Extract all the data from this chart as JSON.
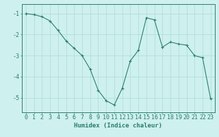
{
  "x": [
    0,
    1,
    2,
    3,
    4,
    5,
    6,
    7,
    8,
    9,
    10,
    11,
    12,
    13,
    14,
    15,
    16,
    17,
    18,
    19,
    20,
    21,
    22,
    23
  ],
  "y": [
    -1.0,
    -1.05,
    -1.15,
    -1.35,
    -1.8,
    -2.3,
    -2.65,
    -3.0,
    -3.65,
    -4.65,
    -5.15,
    -5.35,
    -4.55,
    -3.25,
    -2.75,
    -1.2,
    -1.3,
    -2.6,
    -2.35,
    -2.45,
    -2.5,
    -3.0,
    -3.1,
    -5.05
  ],
  "line_color": "#2a7d6d",
  "marker": "+",
  "marker_color": "#2a7d6d",
  "bg_color": "#cef0ee",
  "grid_color": "#aadbd8",
  "axis_color": "#2a7d6d",
  "spine_color": "#2a7d6d",
  "xlabel": "Humidex (Indice chaleur)",
  "xlim": [
    -0.5,
    23.5
  ],
  "ylim": [
    -5.7,
    -0.55
  ],
  "yticks": [
    -5,
    -4,
    -3,
    -2,
    -1
  ],
  "xticks": [
    0,
    1,
    2,
    3,
    4,
    5,
    6,
    7,
    8,
    9,
    10,
    11,
    12,
    13,
    14,
    15,
    16,
    17,
    18,
    19,
    20,
    21,
    22,
    23
  ],
  "xlabel_fontsize": 6.5,
  "tick_fontsize": 6.0,
  "linewidth": 0.8,
  "markersize": 3.0,
  "markeredgewidth": 0.8
}
